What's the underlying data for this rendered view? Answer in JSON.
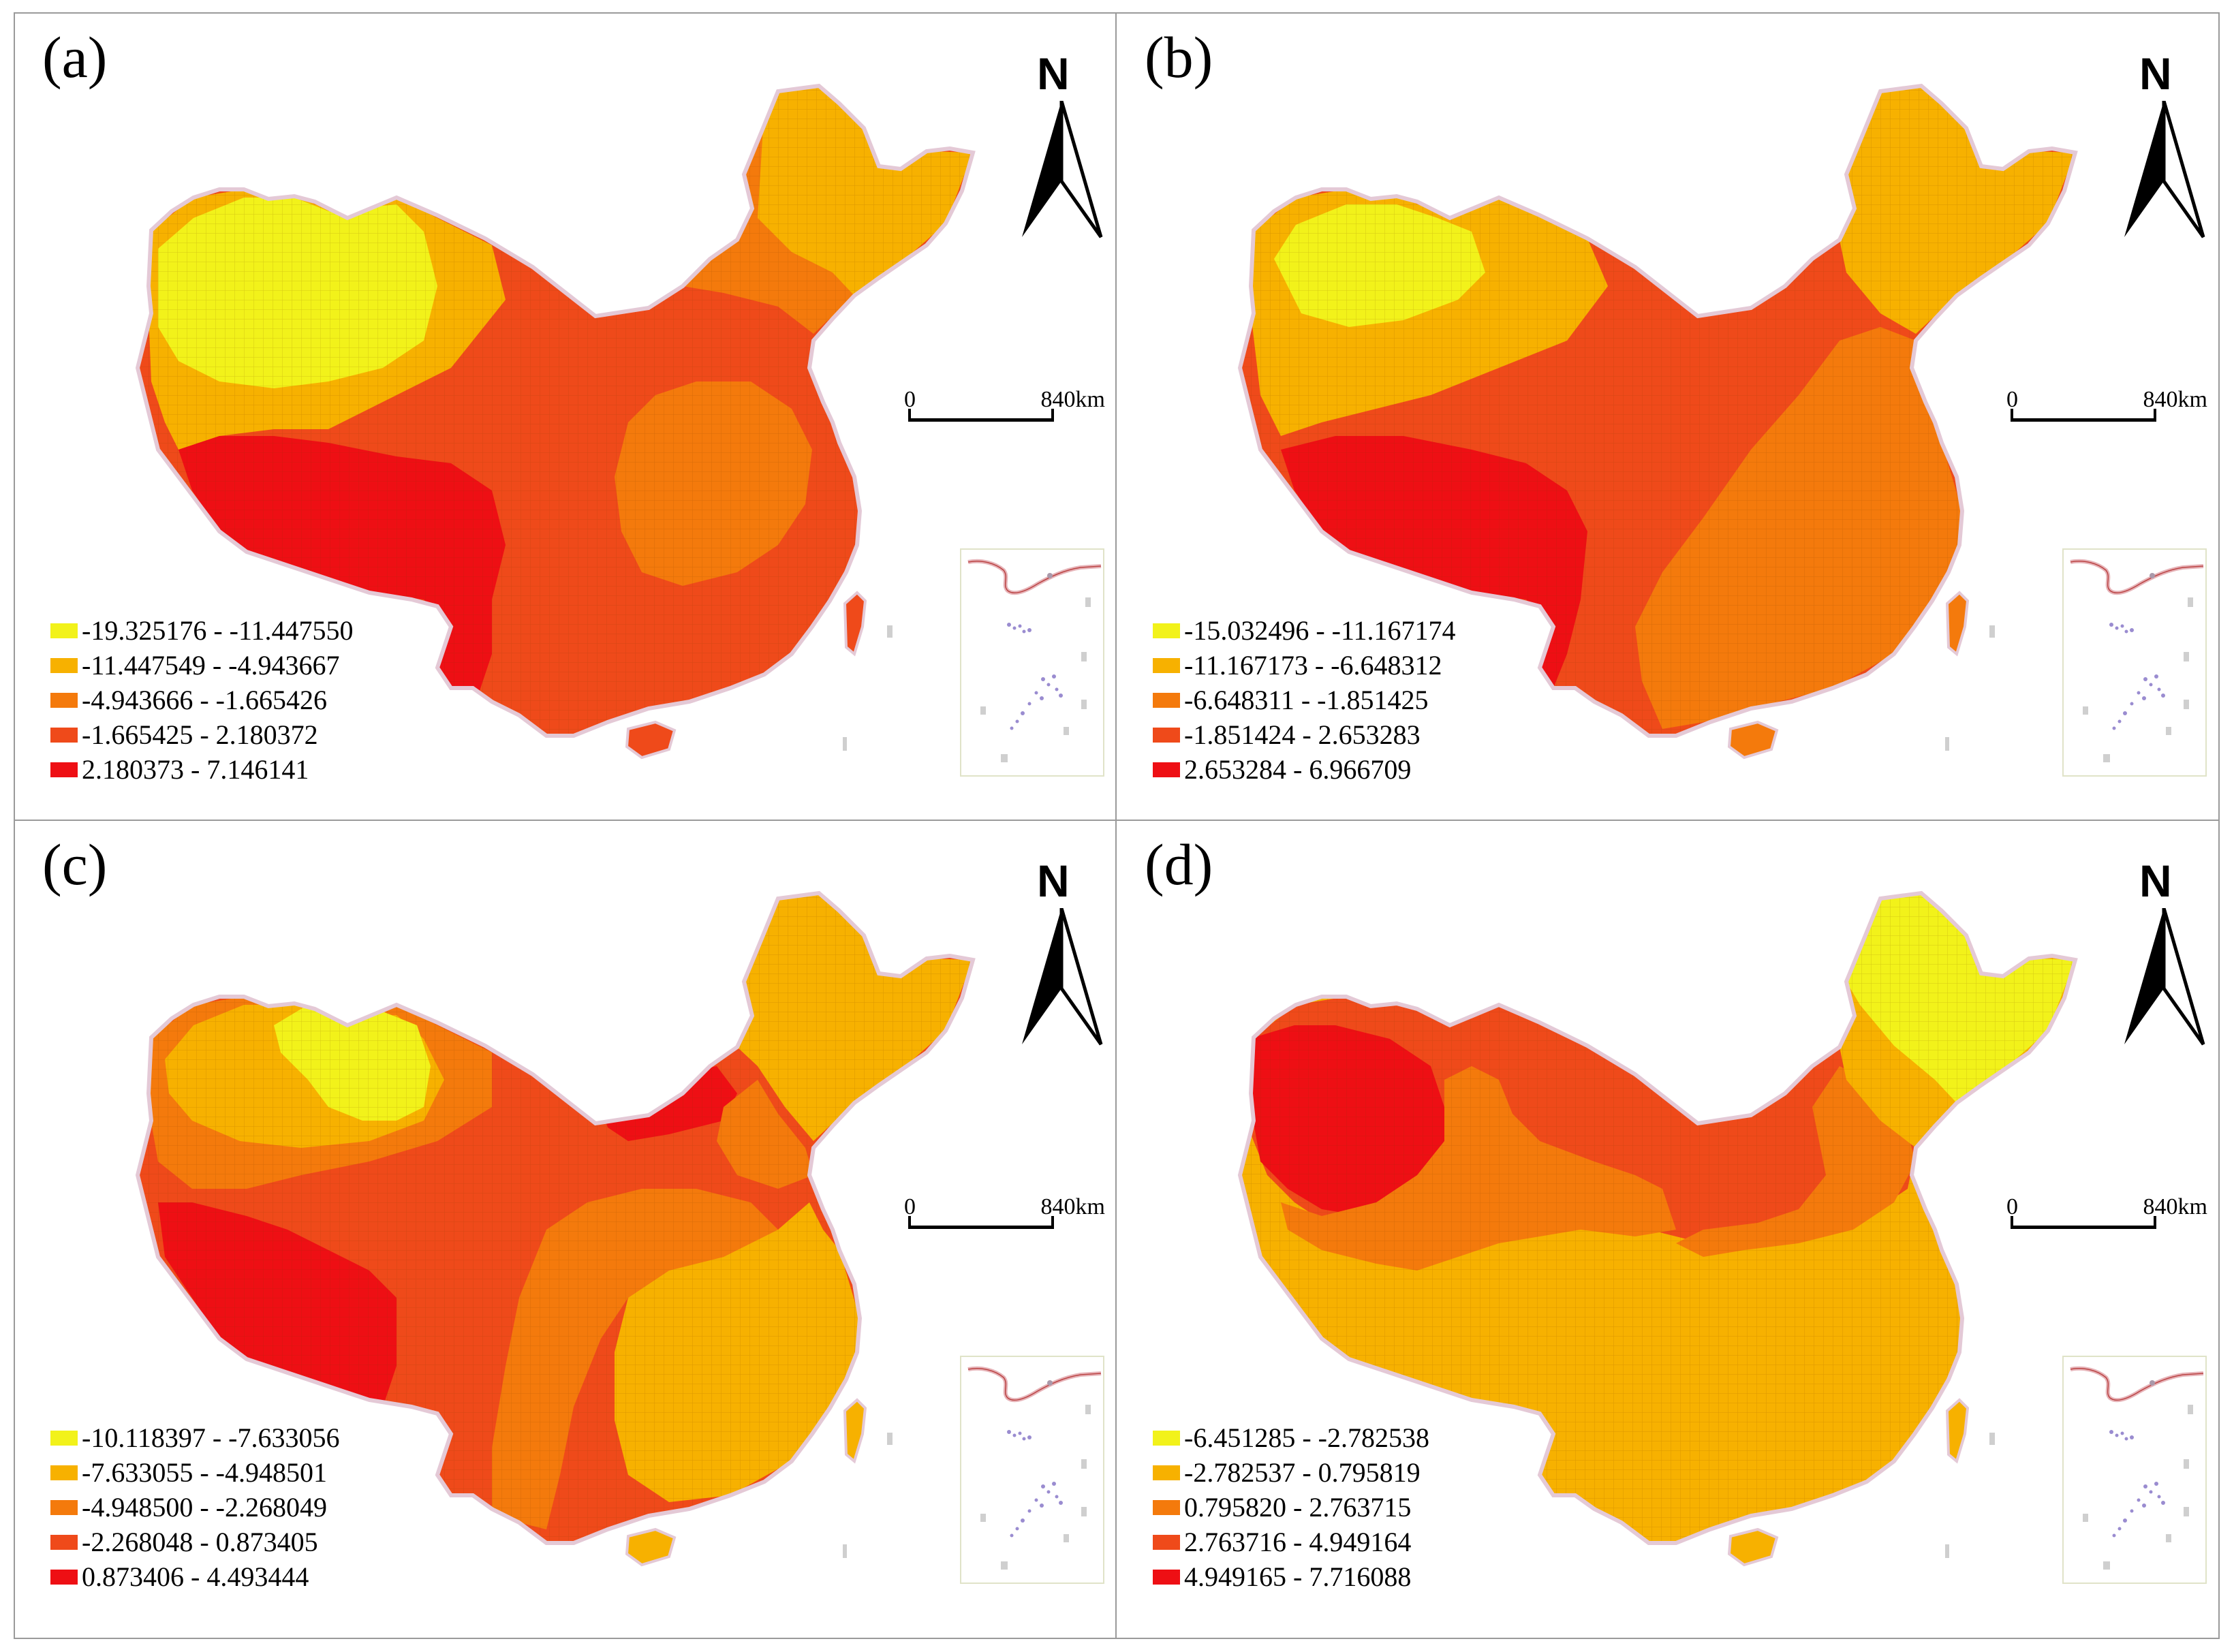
{
  "figure": {
    "scale_zero": "0",
    "scale_distance": "840km",
    "north_label": "N",
    "map_colors": {
      "class1": "#f2f21a",
      "class2": "#f7b100",
      "class3": "#f47a0c",
      "class4": "#ef4a1a",
      "class5": "#ee0f14"
    },
    "panels": [
      {
        "label": "(a)",
        "legend": [
          {
            "range": "-19.325176 - -11.447550",
            "color": "#f2f21a"
          },
          {
            "range": "-11.447549 - -4.943667",
            "color": "#f7b100"
          },
          {
            "range": "-4.943666 - -1.665426",
            "color": "#f47a0c"
          },
          {
            "range": "-1.665425 - 2.180372",
            "color": "#ef4a1a"
          },
          {
            "range": "2.180373 - 7.146141",
            "color": "#ee0f14"
          }
        ]
      },
      {
        "label": "(b)",
        "legend": [
          {
            "range": "-15.032496 - -11.167174",
            "color": "#f2f21a"
          },
          {
            "range": "-11.167173 - -6.648312",
            "color": "#f7b100"
          },
          {
            "range": "-6.648311 - -1.851425",
            "color": "#f47a0c"
          },
          {
            "range": "-1.851424 - 2.653283",
            "color": "#ef4a1a"
          },
          {
            "range": "2.653284 - 6.966709",
            "color": "#ee0f14"
          }
        ]
      },
      {
        "label": "(c)",
        "legend": [
          {
            "range": "-10.118397 - -7.633056",
            "color": "#f2f21a"
          },
          {
            "range": "-7.633055 - -4.948501",
            "color": "#f7b100"
          },
          {
            "range": "-4.948500 - -2.268049",
            "color": "#f47a0c"
          },
          {
            "range": "-2.268048 - 0.873405",
            "color": "#ef4a1a"
          },
          {
            "range": "0.873406 - 4.493444",
            "color": "#ee0f14"
          }
        ]
      },
      {
        "label": "(d)",
        "legend": [
          {
            "range": "-6.451285 - -2.782538",
            "color": "#f2f21a"
          },
          {
            "range": "-2.782537 - 0.795819",
            "color": "#f7b100"
          },
          {
            "range": "0.795820 - 2.763715",
            "color": "#f47a0c"
          },
          {
            "range": "2.763716 - 4.949164",
            "color": "#ef4a1a"
          },
          {
            "range": "4.949165 - 7.716088",
            "color": "#ee0f14"
          }
        ]
      }
    ]
  }
}
